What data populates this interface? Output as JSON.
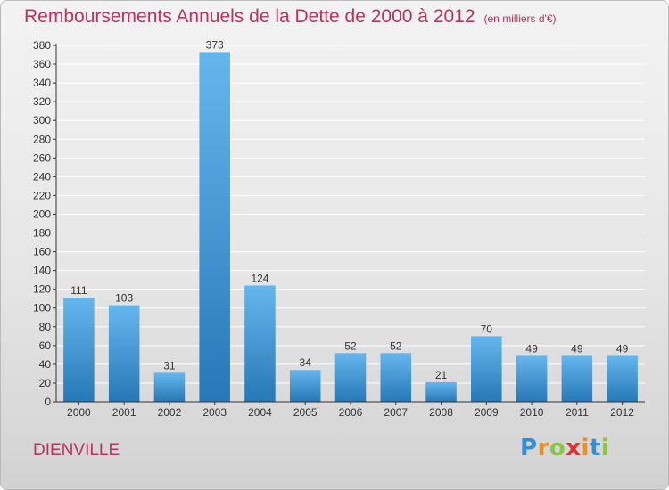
{
  "header": {
    "title": "Remboursements Annuels de la Dette de 2000 à 2012",
    "unit": "(en milliers d'€)"
  },
  "footer": {
    "commune": "DIENVILLE",
    "logo_letters": [
      {
        "char": "P",
        "color": "#2f8fd8"
      },
      {
        "char": "r",
        "color": "#f28c1c"
      },
      {
        "char": "o",
        "color": "#8cc63f"
      },
      {
        "char": "x",
        "color": "#e8312f"
      },
      {
        "char": "i",
        "color": "#f28c1c"
      },
      {
        "char": "t",
        "color": "#2f8fd8"
      },
      {
        "char": "i",
        "color": "#8cc63f"
      }
    ]
  },
  "colors": {
    "title": "#c0305a",
    "bar_top": "#66b6ee",
    "bar_bottom": "#2678b6",
    "grid": "#ffffff",
    "axis": "#333333"
  },
  "chart_data": {
    "type": "bar",
    "title": "Remboursements Annuels de la Dette de 2000 à 2012",
    "subtitle": "(en milliers d'€)",
    "xlabel": "",
    "ylabel": "",
    "categories": [
      "2000",
      "2001",
      "2002",
      "2003",
      "2004",
      "2005",
      "2006",
      "2007",
      "2008",
      "2009",
      "2010",
      "2011",
      "2012"
    ],
    "values": [
      111,
      103,
      31,
      373,
      124,
      34,
      52,
      52,
      21,
      70,
      49,
      49,
      49
    ],
    "ylim": [
      0,
      380
    ],
    "ytick_step": 20,
    "grid": true,
    "data_labels": true
  }
}
